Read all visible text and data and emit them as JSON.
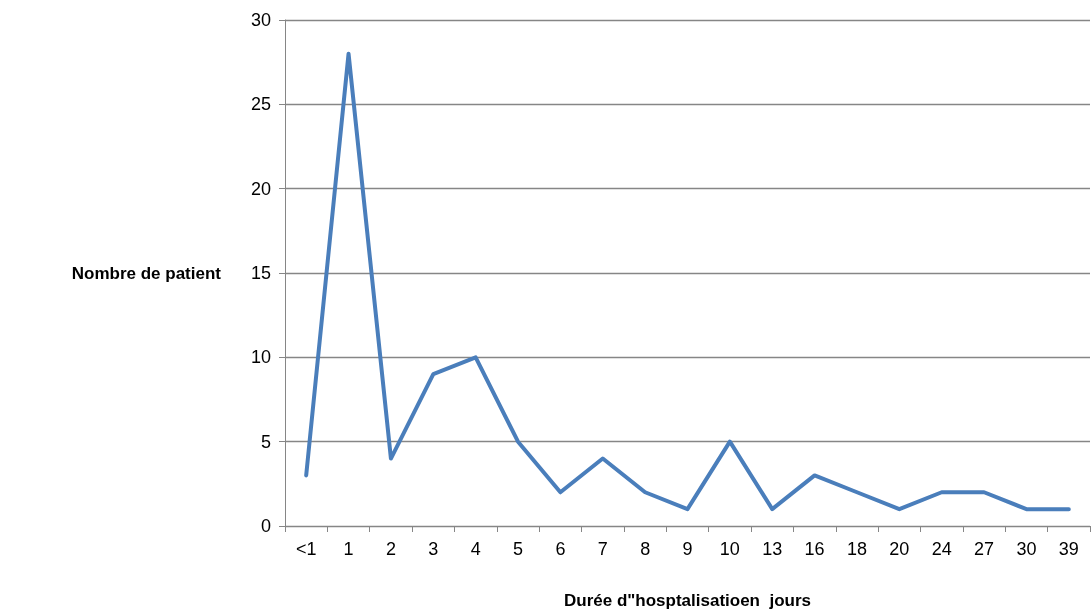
{
  "chart_data": {
    "type": "line",
    "xlabel": "Durée d\"hosptalisatioen  jours",
    "ylabel": "Nombre de patient",
    "categories": [
      "<1",
      "1",
      "2",
      "3",
      "4",
      "5",
      "6",
      "7",
      "8",
      "9",
      "10",
      "13",
      "16",
      "18",
      "20",
      "24",
      "27",
      "30",
      "39"
    ],
    "series": [
      {
        "color": "#4a7ebb",
        "values": [
          3,
          28,
          4,
          9,
          10,
          5,
          2,
          4,
          2,
          1,
          5,
          1,
          3,
          2,
          1,
          2,
          2,
          1,
          1
        ]
      }
    ],
    "ylim": [
      0,
      30
    ],
    "yticks": [
      0,
      5,
      10,
      15,
      20,
      25,
      30
    ],
    "grid": "y",
    "marker": "none",
    "line_style": "solid"
  }
}
